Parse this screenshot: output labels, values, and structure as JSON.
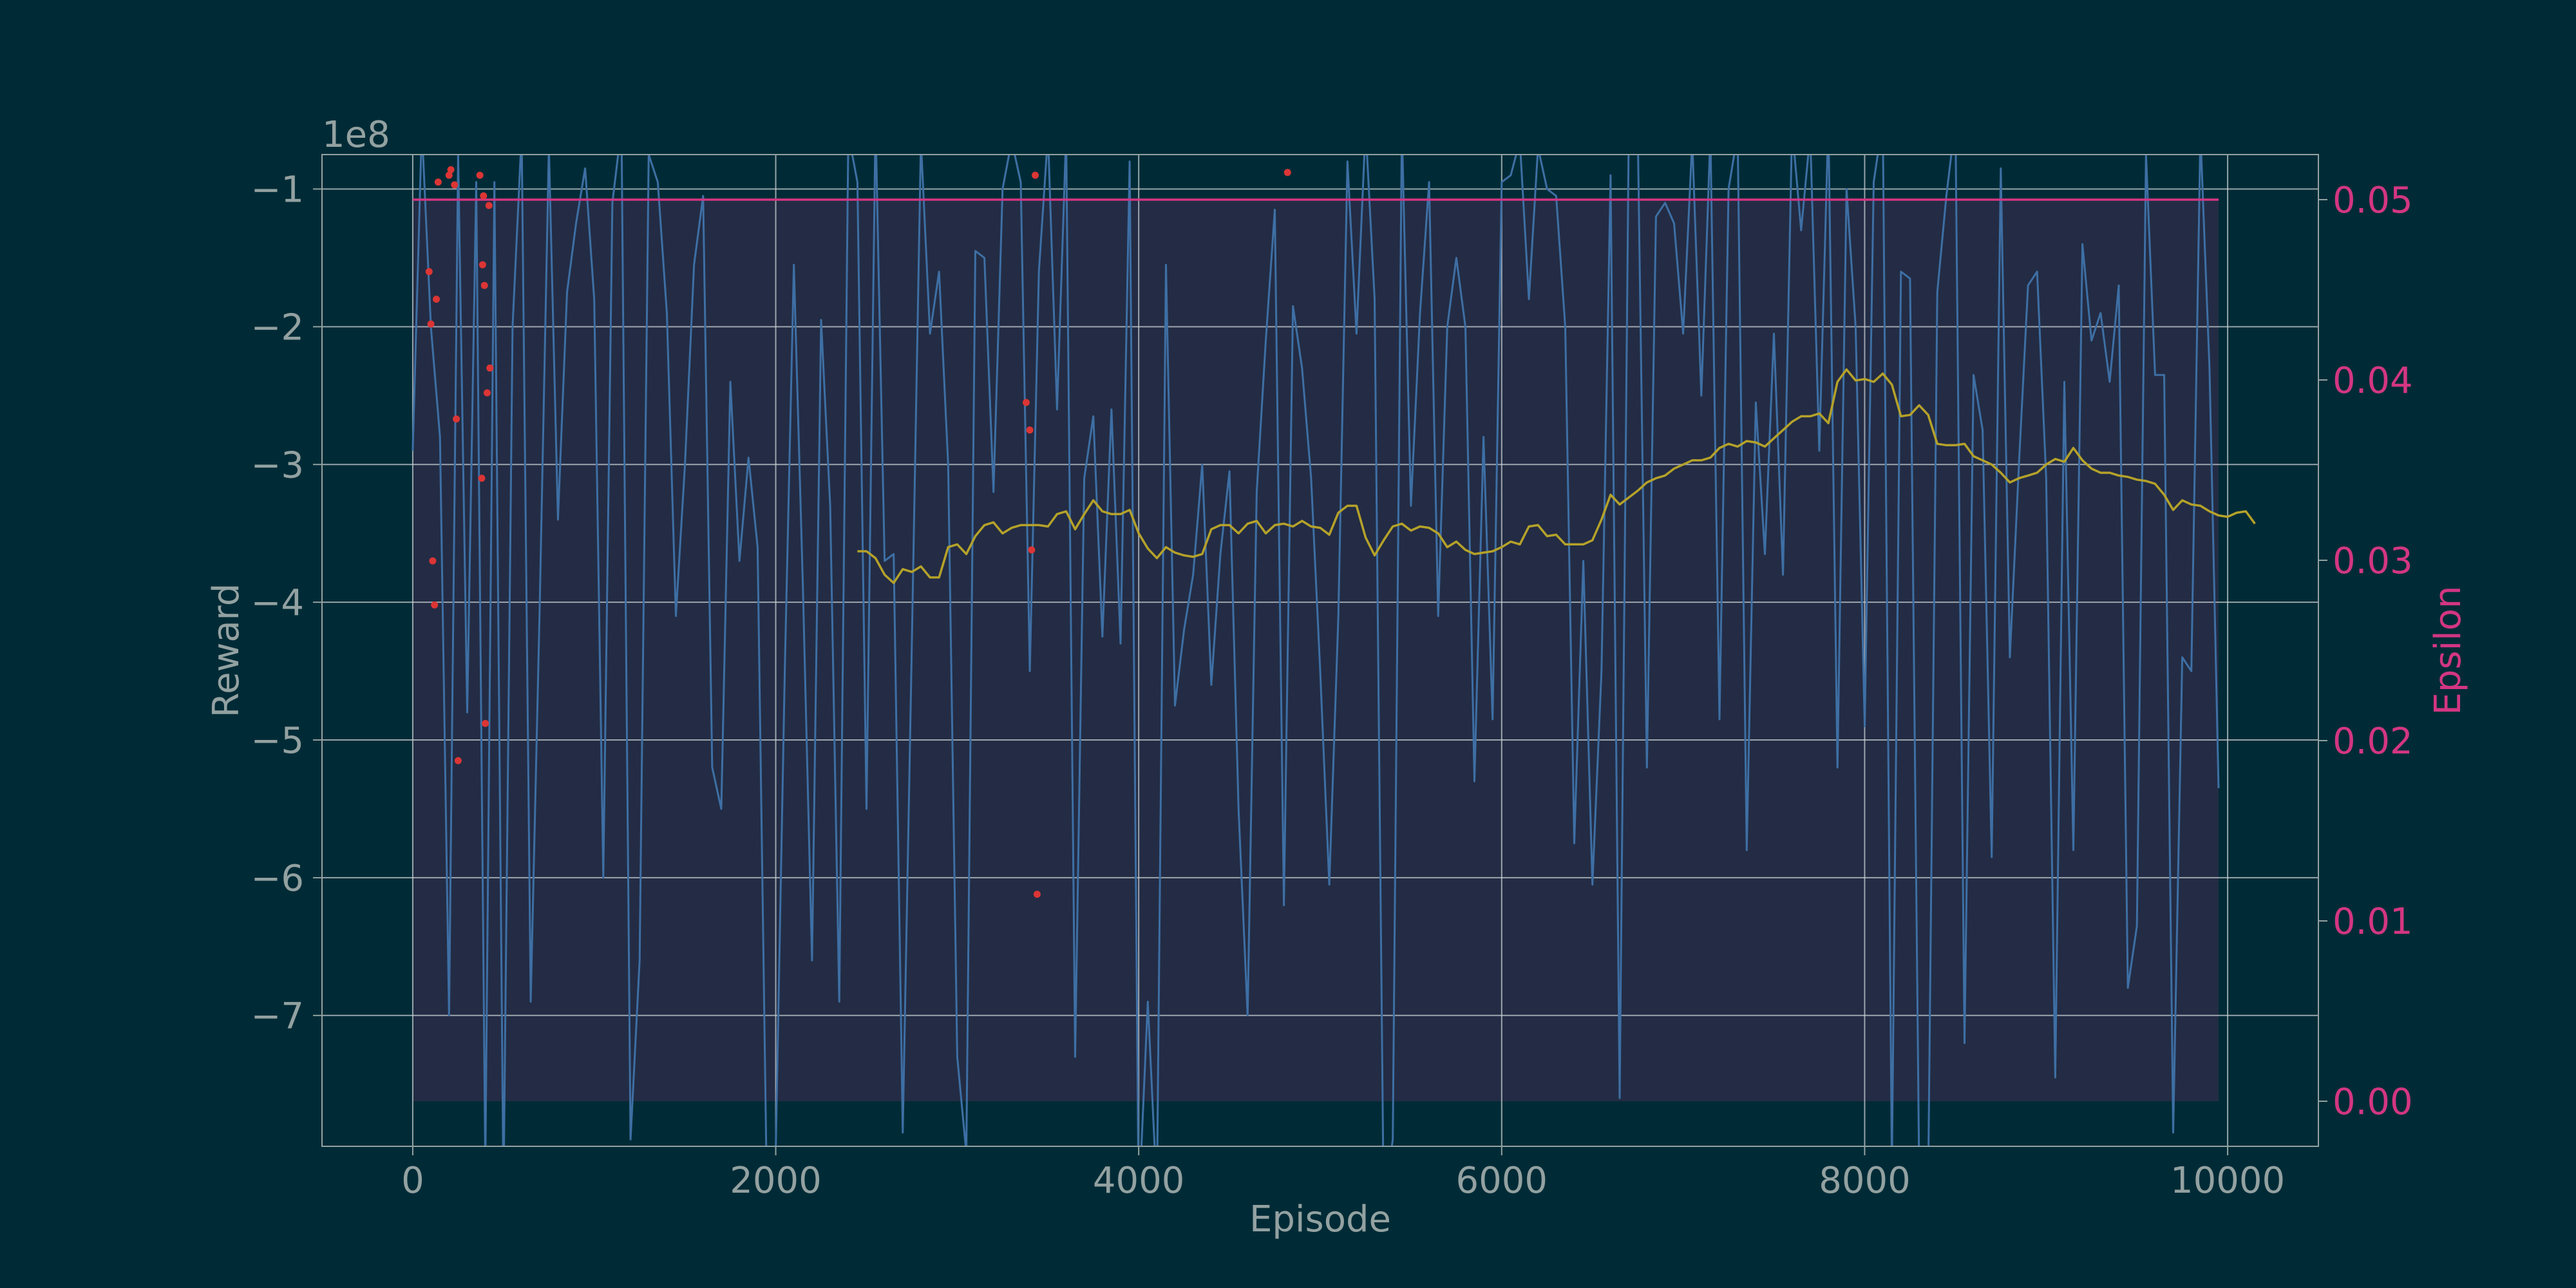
{
  "colors": {
    "background": "#002b36",
    "plot_face": "#232c44",
    "frame": "#93a1a1",
    "grid": "#c8cdd2",
    "reward_line": "#3e6fa4",
    "moving_avg": "#b5a22a",
    "epsilon": "#d33682",
    "red_points": "#dc3535",
    "label_gray": "#93a1a1"
  },
  "chart_data": {
    "type": "line",
    "xlabel": "Episode",
    "ylabel": "Reward",
    "y2label": "Epsilon",
    "y_offset_label": "1e8",
    "xlim": [
      -500,
      10500
    ],
    "ylim": [
      -7.95,
      -0.75
    ],
    "y2lim": [
      -0.0025,
      0.0525
    ],
    "x_ticks": [
      0,
      2000,
      4000,
      6000,
      8000,
      10000
    ],
    "x_tick_labels": [
      "0",
      "2000",
      "4000",
      "6000",
      "8000",
      "10000"
    ],
    "y_ticks": [
      -1,
      -2,
      -3,
      -4,
      -5,
      -6,
      -7
    ],
    "y_tick_labels": [
      "−1",
      "−2",
      "−3",
      "−4",
      "−5",
      "−6",
      "−7"
    ],
    "y2_ticks": [
      0.0,
      0.01,
      0.02,
      0.03,
      0.04,
      0.05
    ],
    "y2_tick_labels": [
      "0.00",
      "0.01",
      "0.02",
      "0.03",
      "0.04",
      "0.05"
    ],
    "grid": true,
    "epsilon_band": {
      "x": [
        0,
        9950
      ],
      "epsilon": [
        0.0,
        0.05
      ]
    },
    "series": [
      {
        "axis": "left",
        "x_start": 0,
        "x_step": 50,
        "values": [
          -2.9,
          -0.55,
          -2.0,
          -2.8,
          -7.0,
          -0.75,
          -4.8,
          -0.95,
          -8.1,
          -0.95,
          -8.3,
          -2.0,
          -0.6,
          -6.9,
          -4.0,
          -0.7,
          -3.4,
          -1.75,
          -1.25,
          -0.85,
          -1.8,
          -6.0,
          -1.1,
          -0.55,
          -7.9,
          -6.6,
          -0.75,
          -0.95,
          -1.9,
          -4.1,
          -3.0,
          -1.55,
          -1.05,
          -5.2,
          -5.5,
          -2.4,
          -3.7,
          -2.95,
          -3.6,
          -8.2,
          -8.0,
          -4.5,
          -1.55,
          -3.9,
          -6.6,
          -1.95,
          -3.3,
          -6.9,
          -0.6,
          -0.95,
          -5.5,
          -0.5,
          -3.7,
          -3.65,
          -7.85,
          -4.3,
          -0.65,
          -2.05,
          -1.6,
          -3.0,
          -7.3,
          -8.0,
          -1.45,
          -1.5,
          -3.2,
          -1.0,
          -0.65,
          -0.95,
          -4.5,
          -1.6,
          -0.6,
          -2.6,
          -0.6,
          -7.3,
          -3.1,
          -2.65,
          -4.25,
          -2.6,
          -4.3,
          -0.8,
          -8.4,
          -6.9,
          -8.3,
          -1.55,
          -4.75,
          -4.2,
          -3.8,
          -3.0,
          -4.6,
          -3.65,
          -3.05,
          -5.5,
          -7.0,
          -3.2,
          -2.1,
          -1.15,
          -6.2,
          -1.85,
          -2.3,
          -3.1,
          -4.5,
          -6.05,
          -4.1,
          -0.8,
          -2.05,
          -0.55,
          -1.8,
          -8.4,
          -7.9,
          -0.55,
          -3.3,
          -1.9,
          -0.95,
          -4.1,
          -2.0,
          -1.5,
          -2.0,
          -5.3,
          -2.8,
          -4.85,
          -0.95,
          -0.9,
          -0.65,
          -1.8,
          -0.7,
          -1.0,
          -1.05,
          -2.0,
          -5.75,
          -3.7,
          -6.05,
          -4.5,
          -0.9,
          -7.6,
          -0.6,
          -0.6,
          -5.2,
          -1.2,
          -1.1,
          -1.25,
          -2.05,
          -0.65,
          -2.5,
          -0.6,
          -4.85,
          -1.0,
          -0.6,
          -5.8,
          -2.55,
          -3.65,
          -2.05,
          -3.8,
          -0.55,
          -1.3,
          -0.6,
          -2.9,
          -0.5,
          -5.2,
          -1.0,
          -2.0,
          -4.9,
          -0.95,
          -0.5,
          -8.1,
          -1.6,
          -1.65,
          -8.1,
          -8.2,
          -1.75,
          -1.05,
          -0.5,
          -7.2,
          -2.35,
          -2.75,
          -5.85,
          -0.85,
          -4.4,
          -3.0,
          -1.7,
          -1.6,
          -3.1,
          -7.45,
          -2.4,
          -5.8,
          -1.4,
          -2.1,
          -1.9,
          -2.4,
          -1.7,
          -6.8,
          -6.35,
          -0.75,
          -2.35,
          -2.35,
          -7.85,
          -4.4,
          -4.5,
          -0.6,
          -2.3,
          -5.35
        ]
      },
      {
        "axis": "left",
        "name_hidden": "moving average",
        "x_start": 2450,
        "x_step": 50,
        "values": [
          -3.63,
          -3.63,
          -3.68,
          -3.8,
          -3.86,
          -3.76,
          -3.78,
          -3.74,
          -3.82,
          -3.82,
          -3.6,
          -3.58,
          -3.65,
          -3.52,
          -3.44,
          -3.42,
          -3.5,
          -3.46,
          -3.44,
          -3.44,
          -3.44,
          -3.45,
          -3.36,
          -3.34,
          -3.47,
          -3.36,
          -3.26,
          -3.34,
          -3.36,
          -3.36,
          -3.33,
          -3.5,
          -3.61,
          -3.68,
          -3.6,
          -3.64,
          -3.66,
          -3.67,
          -3.65,
          -3.47,
          -3.44,
          -3.44,
          -3.5,
          -3.43,
          -3.41,
          -3.5,
          -3.44,
          -3.43,
          -3.45,
          -3.41,
          -3.45,
          -3.46,
          -3.51,
          -3.35,
          -3.3,
          -3.3,
          -3.53,
          -3.66,
          -3.55,
          -3.45,
          -3.43,
          -3.48,
          -3.45,
          -3.46,
          -3.5,
          -3.6,
          -3.56,
          -3.62,
          -3.65,
          -3.64,
          -3.63,
          -3.6,
          -3.56,
          -3.58,
          -3.45,
          -3.44,
          -3.52,
          -3.51,
          -3.58,
          -3.58,
          -3.58,
          -3.55,
          -3.4,
          -3.22,
          -3.29,
          -3.24,
          -3.19,
          -3.13,
          -3.1,
          -3.08,
          -3.03,
          -3.0,
          -2.97,
          -2.97,
          -2.95,
          -2.88,
          -2.85,
          -2.87,
          -2.83,
          -2.84,
          -2.87,
          -2.81,
          -2.75,
          -2.69,
          -2.65,
          -2.65,
          -2.63,
          -2.7,
          -2.4,
          -2.31,
          -2.39,
          -2.38,
          -2.4,
          -2.34,
          -2.42,
          -2.65,
          -2.64,
          -2.57,
          -2.64,
          -2.85,
          -2.86,
          -2.86,
          -2.85,
          -2.94,
          -2.97,
          -3.0,
          -3.06,
          -3.13,
          -3.1,
          -3.08,
          -3.06,
          -3.0,
          -2.96,
          -2.98,
          -2.88,
          -2.97,
          -3.03,
          -3.06,
          -3.06,
          -3.08,
          -3.09,
          -3.11,
          -3.12,
          -3.14,
          -3.22,
          -3.33,
          -3.26,
          -3.29,
          -3.3,
          -3.34,
          -3.37,
          -3.38,
          -3.35,
          -3.34,
          -3.43
        ]
      },
      {
        "axis": "right",
        "name_hidden": "epsilon",
        "x": [
          0,
          9950
        ],
        "values": [
          0.05,
          0.05
        ]
      }
    ],
    "points": {
      "x": [
        90,
        100,
        110,
        120,
        130,
        140,
        180,
        200,
        210,
        230,
        240,
        250,
        270,
        290,
        370,
        380,
        385,
        390,
        395,
        400,
        410,
        415,
        420,
        425,
        430,
        440,
        3380,
        3400,
        3410,
        3420,
        3430,
        3440,
        4820
      ],
      "y": [
        -1.6,
        -1.98,
        -3.7,
        -4.02,
        -1.8,
        -0.95,
        -0.55,
        -0.9,
        -0.86,
        -0.97,
        -2.67,
        -5.15,
        -0.45,
        -0.7,
        -0.9,
        -3.1,
        -1.55,
        -1.05,
        -1.7,
        -4.88,
        -2.48,
        -0.7,
        -1.12,
        -2.3,
        -0.55,
        -0.35,
        -2.55,
        -2.75,
        -3.62,
        -0.45,
        -0.9,
        -6.12,
        -0.88
      ]
    }
  }
}
